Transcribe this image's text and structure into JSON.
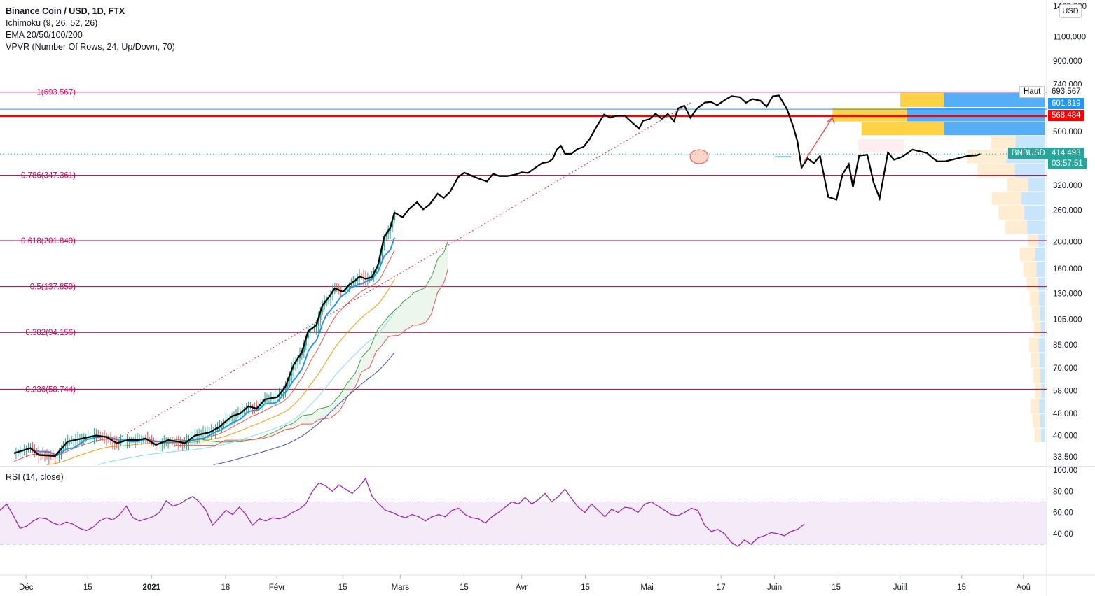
{
  "legend": {
    "title": "Binance Coin / USD, 1D, FTX",
    "ichimoku": "Ichimoku (9, 26, 52, 26)",
    "ema": "EMA 20/50/100/200",
    "vpvr": "VPVR (Number Of Rows, 24, Up/Down, 70)"
  },
  "rsi_label": "RSI (14, close)",
  "currency_button": "USD",
  "top_axis_label": "1400.000",
  "price_tags": {
    "haut_label": "Haut",
    "haut_value": "693.567",
    "blue_value": "601.819",
    "red_value": "568.484",
    "symbol": "BNBUSD",
    "last_price": "414.493",
    "countdown": "03:57:51"
  },
  "colors": {
    "up": "#26a69a",
    "down": "#ef5350",
    "fib": "#a3003f",
    "red_line": "#ff0000",
    "rsi": "#9c27b0",
    "rsi_band": "#f3e5f5",
    "tag_blue": "#2196f3",
    "tag_green": "#26a69a",
    "cloud": "#c8e6c9",
    "conversion": "#2196f3",
    "ema20": "#ef5350",
    "ema50": "#ff9800",
    "ema100": "#80deea",
    "ema200": "#3f51b5",
    "black_line": "#000000"
  },
  "chart_data": [
    {
      "type": "candlestick",
      "symbol": "BNBUSD",
      "y_scale": "log",
      "y_ticks": [
        "1100.000",
        "900.000",
        "740.000",
        "500.000",
        "320.000",
        "260.000",
        "200.000",
        "160.000",
        "130.000",
        "105.000",
        "85.000",
        "70.000",
        "58.000",
        "48.000",
        "40.000",
        "33.500"
      ],
      "x_ticks": [
        "Déc",
        "15",
        "2021",
        "18",
        "Févr",
        "15",
        "Mars",
        "15",
        "Avr",
        "15",
        "Mai",
        "17",
        "Juin",
        "15",
        "Juill",
        "15",
        "Aoû"
      ],
      "fib_levels": [
        {
          "label": "1(693.567)",
          "value": 693.567
        },
        {
          "label": "0.786(347.361)",
          "value": 347.361
        },
        {
          "label": "0.618(201.849)",
          "value": 201.849
        },
        {
          "label": "0.5(137.859)",
          "value": 137.859
        },
        {
          "label": "0.382(94.156)",
          "value": 94.156
        },
        {
          "label": "0.236(58.744)",
          "value": 58.744
        }
      ],
      "horizontal_lines": [
        601.819,
        568.484
      ],
      "high": 693.567,
      "last": 414.493,
      "close_path": [
        [
          0,
          34.5
        ],
        [
          8,
          36
        ],
        [
          12,
          34
        ],
        [
          20,
          33.7
        ],
        [
          26,
          38
        ],
        [
          40,
          40
        ],
        [
          45,
          39.5
        ],
        [
          50,
          37.5
        ],
        [
          55,
          38.5
        ],
        [
          60,
          38.5
        ],
        [
          64,
          39
        ],
        [
          69,
          37
        ],
        [
          75,
          38.5
        ],
        [
          80,
          38
        ],
        [
          83,
          37.5
        ],
        [
          88,
          40
        ],
        [
          95,
          41
        ],
        [
          100,
          43
        ],
        [
          103,
          45
        ],
        [
          106,
          47
        ],
        [
          110,
          48
        ],
        [
          114,
          51
        ],
        [
          118,
          50
        ],
        [
          122,
          54
        ],
        [
          128,
          55
        ],
        [
          132,
          60
        ],
        [
          136,
          72
        ],
        [
          140,
          80
        ],
        [
          143,
          95
        ],
        [
          147,
          100
        ],
        [
          150,
          118
        ],
        [
          153,
          126
        ],
        [
          156,
          136
        ],
        [
          160,
          132
        ],
        [
          163,
          140
        ],
        [
          166,
          145
        ],
        [
          168,
          150
        ],
        [
          171,
          147
        ],
        [
          174,
          149
        ],
        [
          177,
          165
        ],
        [
          180,
          208
        ],
        [
          183,
          225
        ],
        [
          185,
          255
        ],
        [
          189,
          245
        ],
        [
          192,
          262
        ],
        [
          196,
          278
        ],
        [
          199,
          262
        ],
        [
          202,
          272
        ],
        [
          206,
          298
        ],
        [
          209,
          288
        ],
        [
          212,
          302
        ],
        [
          216,
          342
        ],
        [
          219,
          355
        ],
        [
          223,
          345
        ],
        [
          226,
          338
        ],
        [
          230,
          330
        ],
        [
          233,
          352
        ],
        [
          236,
          345
        ],
        [
          240,
          345
        ],
        [
          244,
          350
        ],
        [
          247,
          356
        ],
        [
          250,
          354
        ],
        [
          254,
          372
        ],
        [
          257,
          385
        ],
        [
          260,
          388
        ],
        [
          262,
          398
        ],
        [
          264,
          430
        ],
        [
          266,
          444
        ],
        [
          268,
          415
        ],
        [
          271,
          415
        ],
        [
          274,
          432
        ],
        [
          277,
          440
        ],
        [
          280,
          470
        ],
        [
          283,
          516
        ],
        [
          287,
          576
        ],
        [
          290,
          561
        ],
        [
          293,
          571
        ],
        [
          297,
          571
        ],
        [
          300,
          544
        ],
        [
          304,
          512
        ],
        [
          306,
          547
        ],
        [
          309,
          554
        ],
        [
          312,
          580
        ],
        [
          315,
          556
        ],
        [
          318,
          579
        ],
        [
          321,
          544
        ],
        [
          323,
          606
        ],
        [
          326,
          620
        ],
        [
          329,
          561
        ],
        [
          332,
          604
        ],
        [
          336,
          636
        ],
        [
          339,
          639
        ],
        [
          342,
          622
        ],
        [
          346,
          652
        ],
        [
          349,
          671
        ],
        [
          353,
          665
        ],
        [
          356,
          635
        ],
        [
          359,
          655
        ],
        [
          363,
          646
        ],
        [
          366,
          615
        ],
        [
          369,
          670
        ],
        [
          372,
          675
        ],
        [
          376,
          600
        ],
        [
          379,
          520
        ],
        [
          381,
          461
        ],
        [
          383,
          370
        ],
        [
          386,
          400
        ],
        [
          389,
          384
        ],
        [
          392,
          408
        ],
        [
          396,
          290
        ],
        [
          400,
          284
        ],
        [
          403,
          351
        ],
        [
          406,
          381
        ],
        [
          408,
          315
        ],
        [
          411,
          409
        ],
        [
          415,
          412
        ],
        [
          418,
          328
        ],
        [
          421,
          287
        ],
        [
          425,
          420
        ],
        [
          428,
          395
        ],
        [
          432,
          405
        ],
        [
          435,
          420
        ],
        [
          437,
          430
        ],
        [
          440,
          425
        ],
        [
          444,
          418
        ],
        [
          447,
          400
        ],
        [
          449,
          390
        ],
        [
          453,
          390
        ],
        [
          456,
          395
        ],
        [
          459,
          400
        ],
        [
          462,
          405
        ],
        [
          464,
          408
        ],
        [
          468,
          410
        ],
        [
          470,
          414.5
        ]
      ],
      "vpvr_levels": [
        {
          "price": 650,
          "up": 0.3,
          "down": 0.7
        },
        {
          "price": 575,
          "up": 0.35,
          "down": 0.65
        },
        {
          "price": 510,
          "up": 0.45,
          "down": 0.55
        },
        {
          "price": 455,
          "up": 0.45,
          "down": 0.55
        },
        {
          "price": 405,
          "up": 0.5,
          "down": 0.5
        },
        {
          "price": 360,
          "up": 0.55,
          "down": 0.45
        },
        {
          "price": 320,
          "up": 0.55,
          "down": 0.45
        },
        {
          "price": 285,
          "up": 0.55,
          "down": 0.45
        },
        {
          "price": 255,
          "up": 0.55,
          "down": 0.45
        },
        {
          "price": 225,
          "up": 0.55,
          "down": 0.45
        },
        {
          "price": 200,
          "up": 0.6,
          "down": 0.4
        },
        {
          "price": 180,
          "up": 0.6,
          "down": 0.4
        },
        {
          "price": 160,
          "up": 0.6,
          "down": 0.4
        },
        {
          "price": 140,
          "up": 0.6,
          "down": 0.4
        },
        {
          "price": 125,
          "up": 0.6,
          "down": 0.4
        },
        {
          "price": 110,
          "up": 0.6,
          "down": 0.4
        },
        {
          "price": 97,
          "up": 0.6,
          "down": 0.4
        },
        {
          "price": 85,
          "up": 0.6,
          "down": 0.4
        },
        {
          "price": 75,
          "up": 0.6,
          "down": 0.4
        },
        {
          "price": 66,
          "up": 0.6,
          "down": 0.4
        },
        {
          "price": 58,
          "up": 0.6,
          "down": 0.4
        },
        {
          "price": 51,
          "up": 0.6,
          "down": 0.4
        },
        {
          "price": 45,
          "up": 0.6,
          "down": 0.4
        },
        {
          "price": 40,
          "up": 0.6,
          "down": 0.4
        }
      ]
    },
    {
      "type": "line",
      "name": "RSI (14, close)",
      "y_ticks": [
        "100.00",
        "80.00",
        "60.00",
        "40.00"
      ],
      "band": [
        30,
        70
      ],
      "values": [
        62,
        68,
        57,
        45,
        47,
        52,
        55,
        54,
        50,
        48,
        51,
        49,
        45,
        43,
        46,
        52,
        55,
        53,
        58,
        66,
        55,
        52,
        54,
        56,
        60,
        71,
        66,
        68,
        72,
        75,
        70,
        62,
        48,
        55,
        62,
        58,
        65,
        58,
        48,
        54,
        52,
        55,
        54,
        56,
        60,
        63,
        68,
        80,
        88,
        85,
        80,
        86,
        82,
        78,
        84,
        92,
        75,
        68,
        62,
        60,
        57,
        55,
        58,
        56,
        52,
        56,
        58,
        56,
        62,
        64,
        58,
        55,
        54,
        50,
        56,
        60,
        65,
        70,
        68,
        74,
        68,
        72,
        78,
        70,
        75,
        82,
        73,
        65,
        60,
        68,
        62,
        56,
        63,
        60,
        65,
        64,
        60,
        68,
        70,
        66,
        62,
        58,
        57,
        60,
        64,
        62,
        48,
        42,
        44,
        40,
        32,
        28,
        34,
        30,
        36,
        38,
        41,
        40,
        38,
        42,
        44,
        49
      ]
    }
  ]
}
